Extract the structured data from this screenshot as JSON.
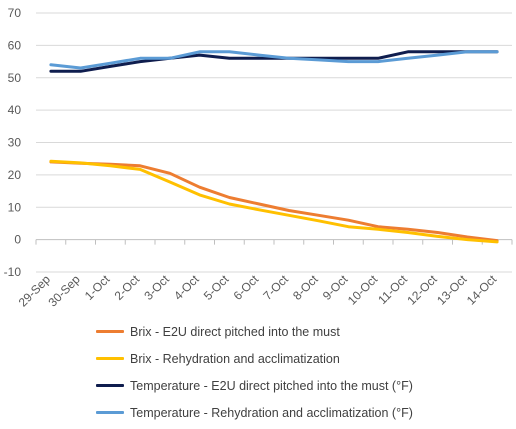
{
  "chart_data": {
    "type": "line",
    "title": "",
    "xlabel": "",
    "ylabel": "",
    "ylim": [
      -10,
      70
    ],
    "yticks": [
      -10,
      0,
      10,
      20,
      30,
      40,
      50,
      60,
      70
    ],
    "grid": true,
    "legend_position": "bottom-left",
    "categories": [
      "29-Sep",
      "30-Sep",
      "1-Oct",
      "2-Oct",
      "3-Oct",
      "4-Oct",
      "5-Oct",
      "6-Oct",
      "7-Oct",
      "8-Oct",
      "9-Oct",
      "10-Oct",
      "11-Oct",
      "12-Oct",
      "13-Oct",
      "14-Oct"
    ],
    "series": [
      {
        "name": "Brix - E2U direct pitched into the must",
        "color": "#ED7D31",
        "values": [
          24,
          23.6,
          23.3,
          22.8,
          20.5,
          16.2,
          13,
          11,
          9,
          7.5,
          6,
          4,
          3.2,
          2.2,
          0.8,
          -0.3
        ]
      },
      {
        "name": "Brix - Rehydration and acclimatization",
        "color": "#FFC000",
        "values": [
          24.2,
          23.7,
          22.8,
          21.7,
          17.8,
          13.8,
          11,
          9.2,
          7.5,
          5.8,
          4,
          3.2,
          2.2,
          1,
          0,
          -0.7
        ]
      },
      {
        "name": "Temperature - E2U direct pitched into the must (°F)",
        "color": "#0F1D4E",
        "values": [
          52,
          52,
          53.5,
          55,
          56,
          57,
          56,
          56,
          56,
          56,
          56,
          56,
          58,
          58,
          58,
          58
        ]
      },
      {
        "name": "Temperature - Rehydration and acclimatization (°F)",
        "color": "#5B9BD5",
        "values": [
          54,
          53,
          54.5,
          56,
          56,
          58,
          58,
          57,
          56,
          55.5,
          55,
          55,
          56,
          57,
          58,
          58
        ]
      }
    ]
  }
}
